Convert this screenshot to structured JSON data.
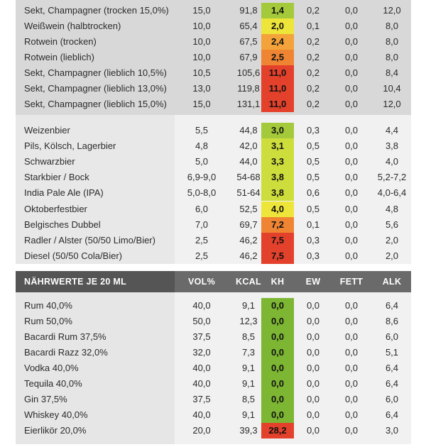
{
  "colors": {
    "dark_green": "#7cb632",
    "light_green": "#a4c93b",
    "yellow_green": "#cddd3c",
    "yellow": "#eee53a",
    "orange": "#f3a33a",
    "dark_orange": "#ef8533",
    "red": "#e3412b",
    "header_bg": "#555555"
  },
  "header": {
    "title": "NÄHRWERTE JE 20 ML",
    "vol": "VOL%",
    "kcal": "KCAL",
    "kh": "KH",
    "ew": "EW",
    "fett": "FETT",
    "alk": "ALK"
  },
  "wine": [
    {
      "name": "Sekt, Champagner (trocken 15,0%)",
      "vol": "15,0",
      "kcal": "91,8",
      "kh": "1,4",
      "ew": "0,2",
      "fett": "0,0",
      "alk": "12,0",
      "kh_color": "light_green"
    },
    {
      "name": "Weißwein (halbtrocken)",
      "vol": "10,0",
      "kcal": "65,4",
      "kh": "2,0",
      "ew": "0,1",
      "fett": "0,0",
      "alk": "8,0",
      "kh_color": "yellow"
    },
    {
      "name": "Rotwein (trocken)",
      "vol": "10,0",
      "kcal": "67,5",
      "kh": "2,4",
      "ew": "0,2",
      "fett": "0,0",
      "alk": "8,0",
      "kh_color": "orange"
    },
    {
      "name": "Rotwein (lieblich)",
      "vol": "10,0",
      "kcal": "67,9",
      "kh": "2,5",
      "ew": "0,2",
      "fett": "0,0",
      "alk": "8,0",
      "kh_color": "dark_orange"
    },
    {
      "name": "Sekt, Champagner (lieblich 10,5%)",
      "vol": "10,5",
      "kcal": "105,6",
      "kh": "11,0",
      "ew": "0,2",
      "fett": "0,0",
      "alk": "8,4",
      "kh_color": "red"
    },
    {
      "name": "Sekt, Champagner (lieblich 13,0%)",
      "vol": "13,0",
      "kcal": "119,8",
      "kh": "11,0",
      "ew": "0,2",
      "fett": "0,0",
      "alk": "10,4",
      "kh_color": "red"
    },
    {
      "name": "Sekt, Champagner (lieblich 15,0%)",
      "vol": "15,0",
      "kcal": "131,1",
      "kh": "11,0",
      "ew": "0,2",
      "fett": "0,0",
      "alk": "12,0",
      "kh_color": "red"
    }
  ],
  "beer": [
    {
      "name": "Weizenbier",
      "vol": "5,5",
      "kcal": "44,8",
      "kh": "3,0",
      "ew": "0,3",
      "fett": "0,0",
      "alk": "4,4",
      "kh_color": "light_green"
    },
    {
      "name": "Pils, Kölsch, Lagerbier",
      "vol": "4,8",
      "kcal": "42,0",
      "kh": "3,1",
      "ew": "0,5",
      "fett": "0,0",
      "alk": "3,8",
      "kh_color": "yellow_green"
    },
    {
      "name": "Schwarzbier",
      "vol": "5,0",
      "kcal": "44,0",
      "kh": "3,3",
      "ew": "0,5",
      "fett": "0,0",
      "alk": "4,0",
      "kh_color": "yellow_green"
    },
    {
      "name": "Starkbier / Bock",
      "vol": "6,9-9,0",
      "kcal": "54-68",
      "kh": "3,8",
      "ew": "0,5",
      "fett": "0,0",
      "alk": "5,2-7,2",
      "kh_color": "yellow_green"
    },
    {
      "name": "India Pale Ale (IPA)",
      "vol": "5,0-8,0",
      "kcal": "51-64",
      "kh": "3,8",
      "ew": "0,6",
      "fett": "0,0",
      "alk": "4,0-6,4",
      "kh_color": "yellow_green"
    },
    {
      "name": "Oktoberfestbier",
      "vol": "6,0",
      "kcal": "52,5",
      "kh": "4,0",
      "ew": "0,5",
      "fett": "0,0",
      "alk": "4,8",
      "kh_color": "yellow"
    },
    {
      "name": "Belgisches Dubbel",
      "vol": "7,0",
      "kcal": "69,7",
      "kh": "7,2",
      "ew": "0,1",
      "fett": "0,0",
      "alk": "5,6",
      "kh_color": "dark_orange"
    },
    {
      "name": "Radler / Alster (50/50 Limo/Bier)",
      "vol": "2,5",
      "kcal": "46,2",
      "kh": "7,5",
      "ew": "0,3",
      "fett": "0,0",
      "alk": "2,0",
      "kh_color": "red"
    },
    {
      "name": "Diesel (50/50 Cola/Bier)",
      "vol": "2,5",
      "kcal": "46,2",
      "kh": "7,5",
      "ew": "0,3",
      "fett": "0,0",
      "alk": "2,0",
      "kh_color": "red"
    }
  ],
  "spirits": [
    {
      "name": "Rum 40,0%",
      "vol": "40,0",
      "kcal": "9,1",
      "kh": "0,0",
      "ew": "0,0",
      "fett": "0,0",
      "alk": "6,4",
      "kh_color": "dark_green"
    },
    {
      "name": "Rum 50,0%",
      "vol": "50,0",
      "kcal": "12,3",
      "kh": "0,0",
      "ew": "0,0",
      "fett": "0,0",
      "alk": "8,6",
      "kh_color": "dark_green"
    },
    {
      "name": "Bacardi Rum 37,5%",
      "vol": "37,5",
      "kcal": "8,5",
      "kh": "0,0",
      "ew": "0,0",
      "fett": "0,0",
      "alk": "6,0",
      "kh_color": "dark_green"
    },
    {
      "name": "Bacardi Razz 32,0%",
      "vol": "32,0",
      "kcal": "7,3",
      "kh": "0,0",
      "ew": "0,0",
      "fett": "0,0",
      "alk": "5,1",
      "kh_color": "dark_green"
    },
    {
      "name": "Vodka 40,0%",
      "vol": "40,0",
      "kcal": "9,1",
      "kh": "0,0",
      "ew": "0,0",
      "fett": "0,0",
      "alk": "6,4",
      "kh_color": "dark_green"
    },
    {
      "name": "Tequila 40,0%",
      "vol": "40,0",
      "kcal": "9,1",
      "kh": "0,0",
      "ew": "0,0",
      "fett": "0,0",
      "alk": "6,4",
      "kh_color": "dark_green"
    },
    {
      "name": "Gin 37,5%",
      "vol": "37,5",
      "kcal": "8,5",
      "kh": "0,0",
      "ew": "0,0",
      "fett": "0,0",
      "alk": "6,0",
      "kh_color": "dark_green"
    },
    {
      "name": "Whiskey 40,0%",
      "vol": "40,0",
      "kcal": "9,1",
      "kh": "0,0",
      "ew": "0,0",
      "fett": "0,0",
      "alk": "6,4",
      "kh_color": "dark_green"
    },
    {
      "name": "Eierlikör 20,0%",
      "vol": "20,0",
      "kcal": "39,3",
      "kh": "28,2",
      "ew": "0,0",
      "fett": "0,0",
      "alk": "3,0",
      "kh_color": "red"
    }
  ]
}
